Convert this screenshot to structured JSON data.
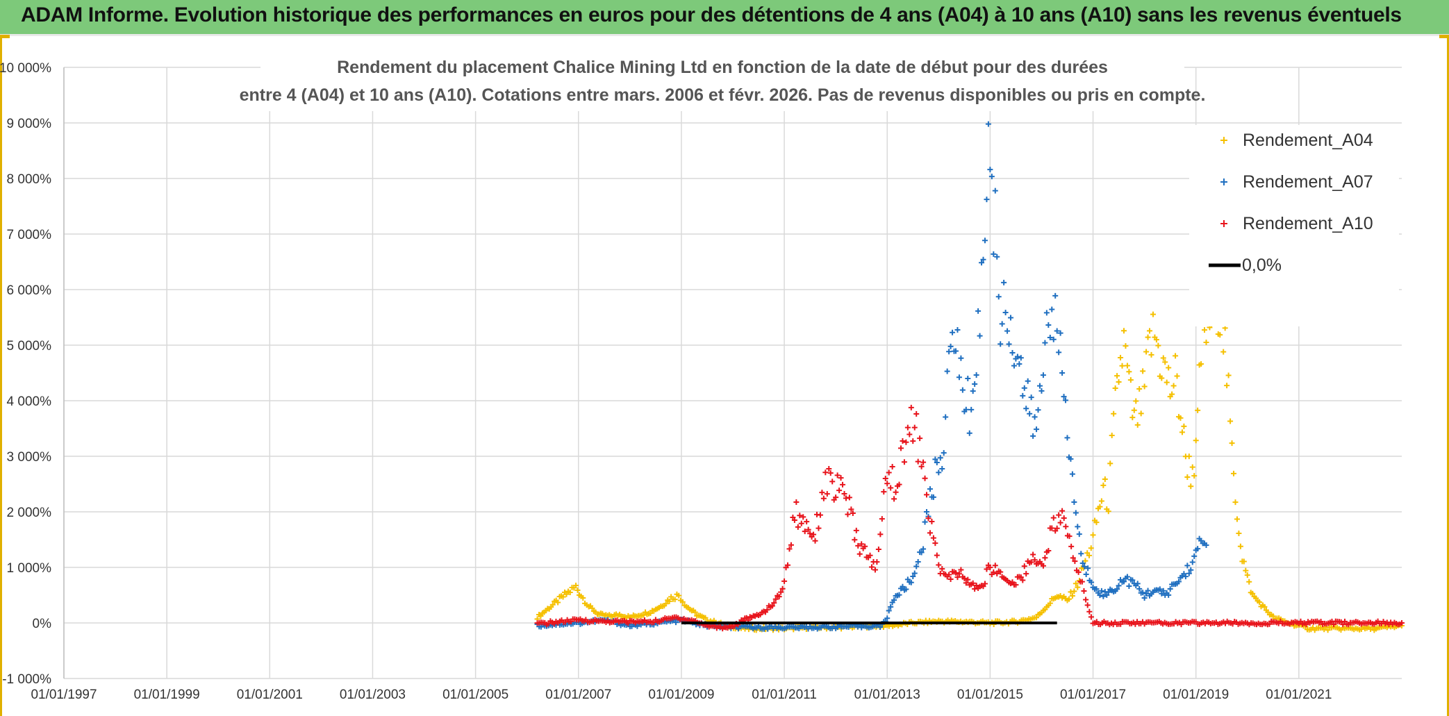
{
  "header": {
    "title": "ADAM Informe. Evolution historique des performances en euros pour des détentions de 4 ans (A04) à 10 ans (A10) sans les revenus éventuels"
  },
  "colors": {
    "banner": "#7dc97a",
    "a04": "#f5c000",
    "a07": "#1f6fc0",
    "a10": "#e8141c",
    "zero": "#000000",
    "grid": "#d9d9d9"
  },
  "chart_data": {
    "type": "scatter",
    "title_line1": "Rendement du placement Chalice Mining Ltd en fonction de la date de début pour des durées",
    "title_line2": "entre 4 (A04) et 10 ans (A10). Cotations entre mars. 2006 et févr. 2026. Pas de revenus disponibles ou pris en compte.",
    "xlabel": "",
    "ylabel": "",
    "x_unit": "year",
    "xlim": [
      1997.0,
      2023.0
    ],
    "ylim": [
      -1000,
      10000
    ],
    "y_ticks": [
      -1000,
      0,
      1000,
      2000,
      3000,
      4000,
      5000,
      6000,
      7000,
      8000,
      9000,
      10000
    ],
    "y_tick_labels": [
      "-1 000%",
      "0%",
      "1 000%",
      "2 000%",
      "3 000%",
      "4 000%",
      "5 000%",
      "6 000%",
      "7 000%",
      "8 000%",
      "9 000%",
      "10 000%"
    ],
    "x_ticks": [
      1997,
      1999,
      2001,
      2003,
      2005,
      2007,
      2009,
      2011,
      2013,
      2015,
      2017,
      2019,
      2021
    ],
    "x_tick_labels": [
      "01/01/1997",
      "01/01/1999",
      "01/01/2001",
      "01/01/2003",
      "01/01/2005",
      "01/01/2007",
      "01/01/2009",
      "01/01/2011",
      "01/01/2013",
      "01/01/2015",
      "01/01/2017",
      "01/01/2019",
      "01/01/2021"
    ],
    "legend_position": "top-right",
    "series": [
      {
        "name": "Rendement_A04",
        "color": "#f5c000",
        "marker": "+",
        "x": [
          2006.2,
          2006.4,
          2006.6,
          2006.8,
          2006.95,
          2007.05,
          2007.2,
          2007.4,
          2007.6,
          2007.8,
          2008.0,
          2008.2,
          2008.4,
          2008.6,
          2008.8,
          2008.95,
          2009.1,
          2009.3,
          2009.5,
          2009.7,
          2009.9,
          2010.2,
          2010.6,
          2011.0,
          2011.5,
          2012.0,
          2012.5,
          2013.0,
          2013.5,
          2014.0,
          2014.5,
          2015.0,
          2015.5,
          2015.9,
          2016.1,
          2016.3,
          2016.5,
          2016.7,
          2016.85,
          2017.0,
          2017.1,
          2017.2,
          2017.3,
          2017.4,
          2017.5,
          2017.6,
          2017.7,
          2017.8,
          2017.9,
          2018.0,
          2018.1,
          2018.2,
          2018.3,
          2018.4,
          2018.5,
          2018.6,
          2018.7,
          2018.8,
          2018.9,
          2019.0,
          2019.1,
          2019.2,
          2019.3,
          2019.4,
          2019.5,
          2019.6,
          2019.7,
          2019.8,
          2019.9,
          2020.0,
          2020.1,
          2020.3,
          2020.5,
          2020.8,
          2021.2,
          2021.6,
          2022.0,
          2022.5,
          2023.0
        ],
        "y": [
          100,
          250,
          400,
          550,
          650,
          500,
          300,
          150,
          120,
          150,
          100,
          150,
          200,
          300,
          450,
          500,
          300,
          150,
          50,
          0,
          -50,
          -100,
          -100,
          -100,
          -80,
          -80,
          -60,
          -50,
          0,
          30,
          20,
          0,
          20,
          100,
          300,
          500,
          400,
          700,
          1100,
          1500,
          2000,
          2400,
          2200,
          3500,
          4500,
          5000,
          4200,
          3600,
          3800,
          4200,
          5000,
          5200,
          4800,
          4500,
          4200,
          4400,
          3800,
          3000,
          2700,
          3000,
          4800,
          5300,
          5500,
          5900,
          5800,
          4500,
          3000,
          2000,
          1200,
          800,
          500,
          300,
          100,
          0,
          -100,
          -100,
          -100,
          -100,
          -50
        ]
      },
      {
        "name": "Rendement_A07",
        "color": "#1f6fc0",
        "marker": "+",
        "x": [
          2006.2,
          2006.6,
          2007.0,
          2007.5,
          2008.0,
          2008.5,
          2009.0,
          2009.5,
          2010.0,
          2010.5,
          2011.0,
          2011.5,
          2012.0,
          2012.5,
          2012.9,
          2013.0,
          2013.1,
          2013.3,
          2013.5,
          2013.7,
          2013.9,
          2014.0,
          2014.1,
          2014.2,
          2014.3,
          2014.4,
          2014.5,
          2014.6,
          2014.7,
          2014.8,
          2014.9,
          2015.0,
          2015.1,
          2015.2,
          2015.3,
          2015.4,
          2015.5,
          2015.6,
          2015.7,
          2015.8,
          2015.9,
          2016.0,
          2016.1,
          2016.2,
          2016.3,
          2016.4,
          2016.5,
          2016.6,
          2016.7,
          2016.8,
          2016.9,
          2017.0,
          2017.2,
          2017.4,
          2017.6,
          2017.8,
          2018.0,
          2018.2,
          2018.4,
          2018.6,
          2018.8,
          2019.0,
          2019.1,
          2019.2
        ],
        "y": [
          -50,
          -20,
          0,
          50,
          -50,
          0,
          50,
          -50,
          -80,
          -80,
          -80,
          -80,
          -70,
          -60,
          -50,
          100,
          400,
          600,
          800,
          1500,
          2500,
          3000,
          3200,
          4500,
          5500,
          4500,
          4200,
          3800,
          4500,
          5500,
          7500,
          8500,
          7000,
          5500,
          5800,
          5300,
          5000,
          4500,
          4000,
          3700,
          3500,
          4200,
          5500,
          6000,
          5000,
          4500,
          3500,
          2500,
          1800,
          1000,
          900,
          700,
          500,
          600,
          800,
          700,
          500,
          600,
          500,
          700,
          900,
          1200,
          1500,
          1400
        ]
      },
      {
        "name": "Rendement_A10",
        "color": "#e8141c",
        "marker": "+",
        "x": [
          2006.2,
          2006.6,
          2007.0,
          2007.5,
          2008.0,
          2008.5,
          2008.9,
          2009.2,
          2009.5,
          2009.8,
          2010.0,
          2010.2,
          2010.4,
          2010.6,
          2010.8,
          2011.0,
          2011.2,
          2011.4,
          2011.6,
          2011.8,
          2012.0,
          2012.2,
          2012.4,
          2012.6,
          2012.8,
          2013.0,
          2013.2,
          2013.4,
          2013.6,
          2013.8,
          2014.0,
          2014.2,
          2014.4,
          2014.6,
          2014.8,
          2015.0,
          2015.2,
          2015.4,
          2015.6,
          2015.8,
          2016.0,
          2016.2,
          2016.4,
          2017.0,
          2018.0,
          2019.0,
          2020.0,
          2021.0,
          2022.0,
          2023.0
        ],
        "y": [
          -20,
          20,
          50,
          30,
          20,
          30,
          100,
          50,
          -50,
          -80,
          -60,
          50,
          100,
          200,
          350,
          700,
          2000,
          1800,
          1600,
          2600,
          2400,
          2300,
          1500,
          1200,
          1000,
          2800,
          2400,
          3700,
          3300,
          2000,
          1000,
          800,
          900,
          700,
          600,
          1000,
          900,
          700,
          800,
          1200,
          1000,
          1700,
          1900,
          0,
          0,
          0,
          0,
          0,
          0,
          0
        ]
      },
      {
        "name": "0,0%",
        "color": "#000000",
        "marker": "line",
        "x": [
          2009.0,
          2016.3
        ],
        "y": [
          0,
          0
        ]
      }
    ]
  }
}
